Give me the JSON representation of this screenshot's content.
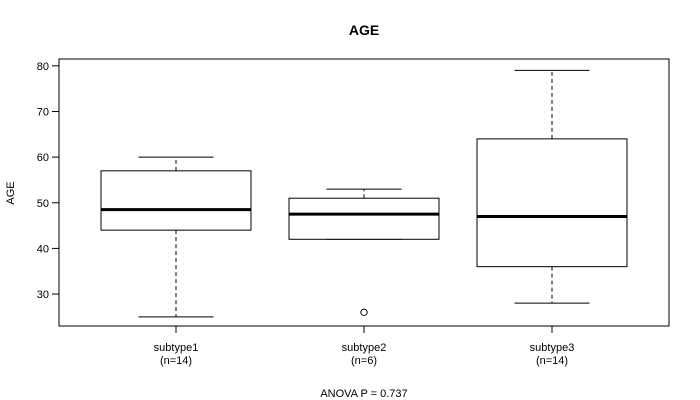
{
  "chart_data": {
    "type": "boxplot",
    "title": "AGE",
    "ylabel": "AGE",
    "xlabel": "ANOVA P = 0.737",
    "ylim": [
      23,
      81.5
    ],
    "yticks": [
      30,
      40,
      50,
      60,
      70,
      80
    ],
    "ytick_labels": [
      "30",
      "40",
      "50",
      "60",
      "70",
      "80"
    ],
    "groups": [
      {
        "name": "subtype1",
        "n_label": "(n=14)",
        "whisker_low": 25,
        "q1": 44,
        "median": 48.5,
        "q3": 57,
        "whisker_high": 60,
        "outliers": []
      },
      {
        "name": "subtype2",
        "n_label": "(n=6)",
        "whisker_low": 42,
        "q1": 42,
        "median": 47.5,
        "q3": 51,
        "whisker_high": 53,
        "outliers": [
          26
        ]
      },
      {
        "name": "subtype3",
        "n_label": "(n=14)",
        "whisker_low": 28,
        "q1": 36,
        "median": 47,
        "q3": 64,
        "whisker_high": 79,
        "outliers": []
      }
    ]
  }
}
